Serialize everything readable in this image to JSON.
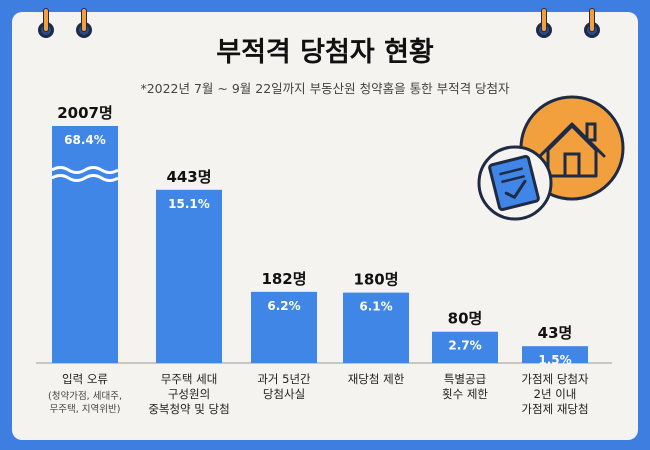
{
  "title": "부적격 당첨자 현황",
  "subtitle": "*2022년 7월 ~ 9월 22일까지 부동산원 청약홈을 통한 부적격 당첨자",
  "colors": {
    "background": "#3d7ee0",
    "card": "#f4f3ef",
    "bar": "#3f86e6",
    "accent": "#f2a03d"
  },
  "icons": [
    "house-badge-icon",
    "checked-document-icon",
    "binder-ring-icon"
  ],
  "chart_data": {
    "type": "bar",
    "categories": [
      {
        "label": [
          "입력 오류"
        ],
        "note": [
          "(청약가점, 세대주,",
          "무주택, 지역위반)"
        ]
      },
      {
        "label": [
          "무주택 세대",
          "구성원의",
          "중복청약 및 당첨"
        ]
      },
      {
        "label": [
          "과거 5년간",
          "당첨사실"
        ]
      },
      {
        "label": [
          "재당첨 제한"
        ]
      },
      {
        "label": [
          "특별공급",
          "횟수 제한"
        ]
      },
      {
        "label": [
          "가점제 당첨자",
          "2년 이내",
          "가점제 재당첨"
        ]
      }
    ],
    "values": [
      2007,
      443,
      182,
      180,
      80,
      43
    ],
    "value_labels": [
      "2007명",
      "443명",
      "182명",
      "180명",
      "80명",
      "43명"
    ],
    "percent_labels": [
      "68.4%",
      "15.1%",
      "6.2%",
      "6.1%",
      "2.7%",
      "1.5%"
    ],
    "first_bar_axis_break": true,
    "xlabel": "",
    "ylabel": "",
    "grid": false,
    "legend": "none"
  }
}
